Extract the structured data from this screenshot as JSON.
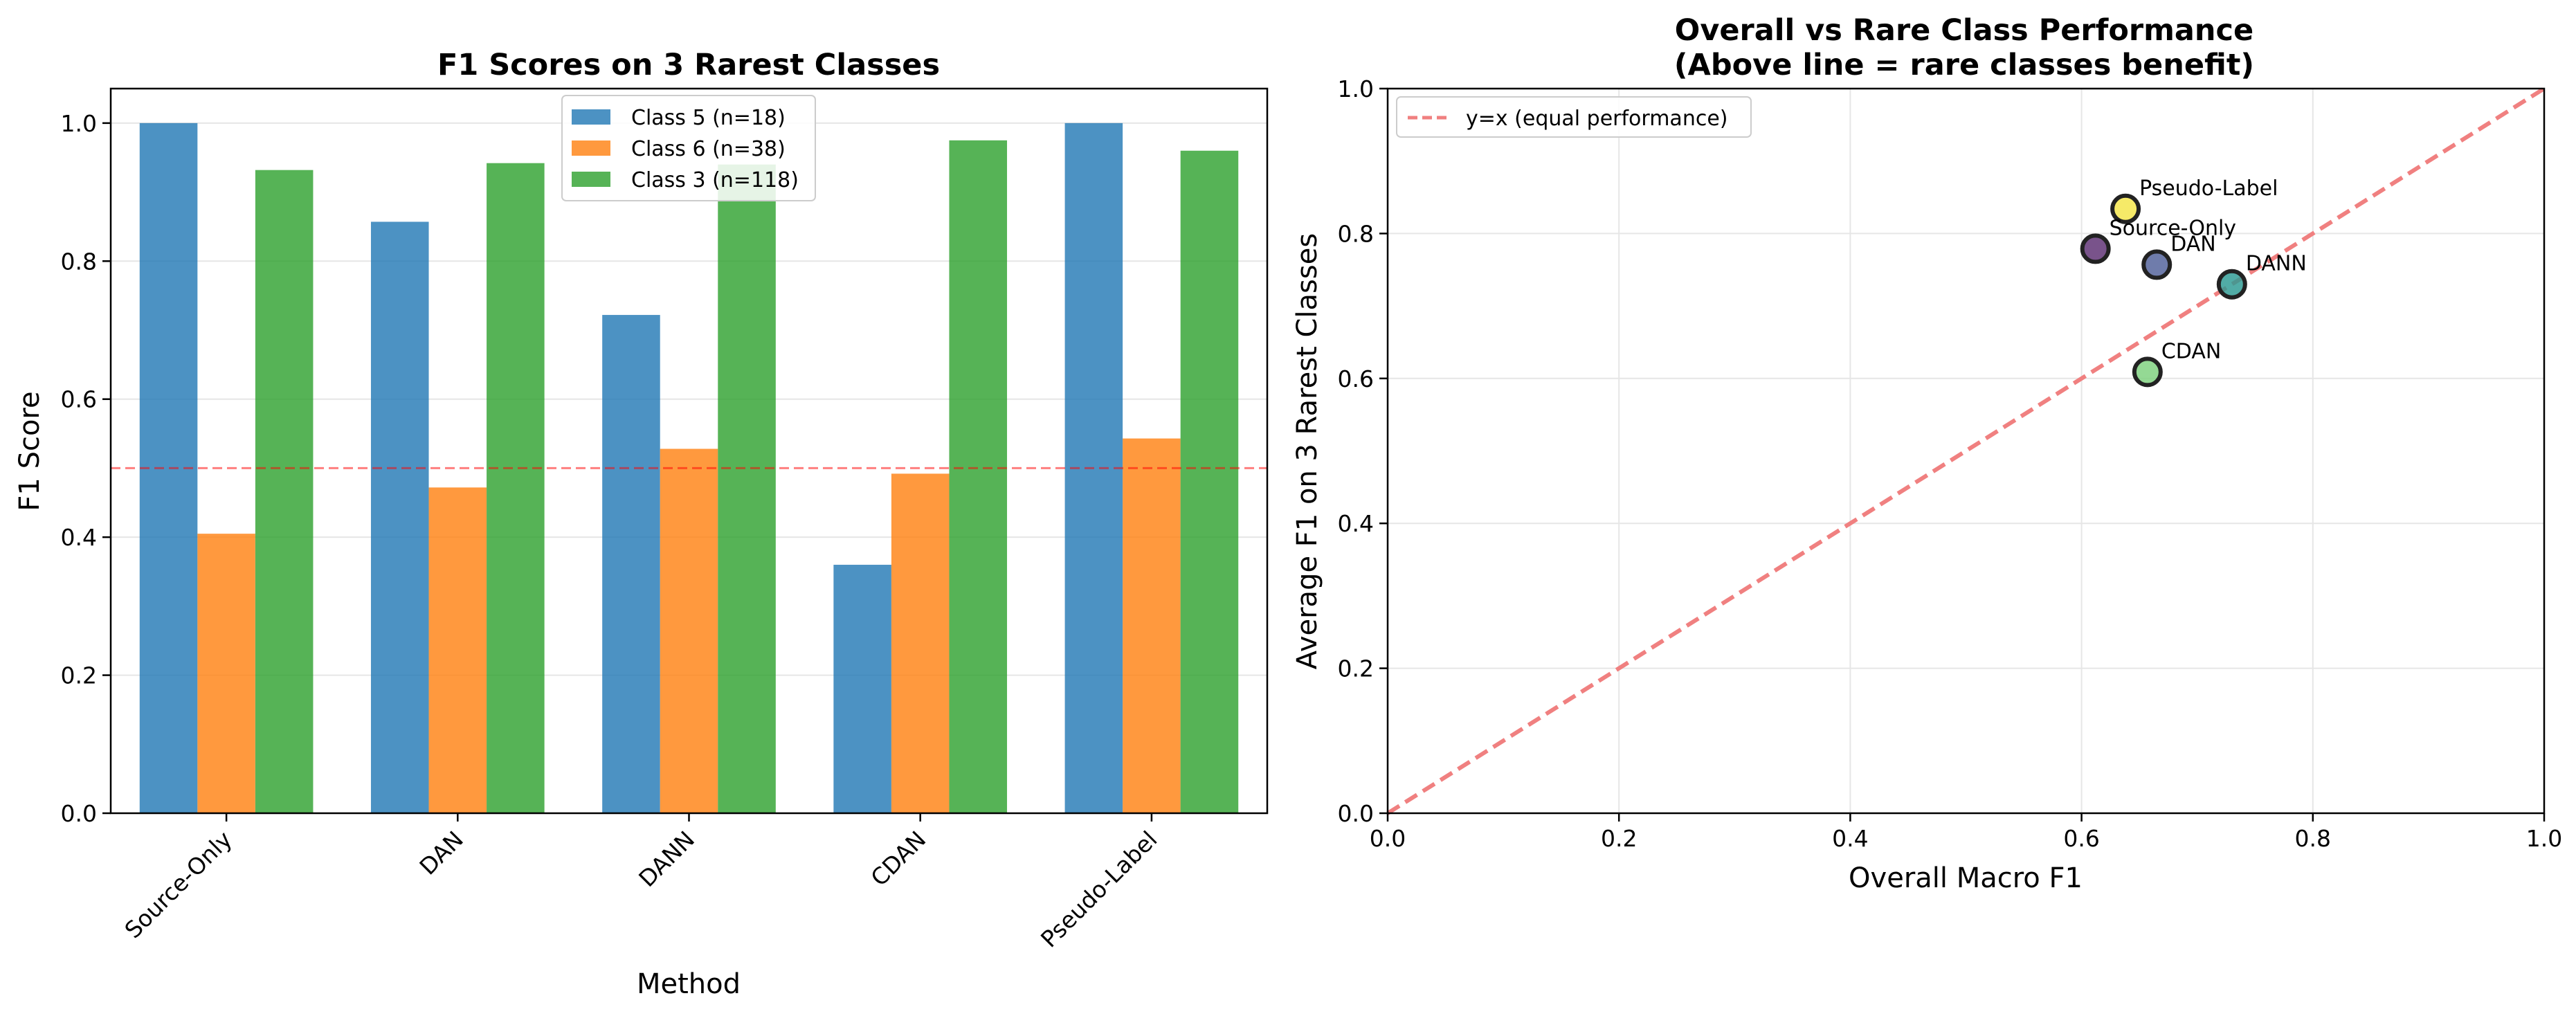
{
  "chart_data": [
    {
      "type": "bar",
      "title": "F1 Scores on 3 Rarest Classes",
      "xlabel": "Method",
      "ylabel": "F1 Score",
      "categories": [
        "Source-Only",
        "DAN",
        "DANN",
        "CDAN",
        "Pseudo-Label"
      ],
      "series": [
        {
          "name": "Class 5 (n=18)",
          "color": "#1f77b4",
          "values": [
            1.0,
            0.857,
            0.722,
            0.36,
            1.0
          ]
        },
        {
          "name": "Class 6 (n=38)",
          "color": "#ff7f0e",
          "values": [
            0.405,
            0.472,
            0.528,
            0.492,
            0.543
          ]
        },
        {
          "name": "Class 3 (n=118)",
          "color": "#2ca02c",
          "values": [
            0.932,
            0.942,
            0.94,
            0.975,
            0.96
          ]
        }
      ],
      "ylim": [
        0,
        1.05
      ],
      "yticks": [
        "0.0",
        "0.2",
        "0.4",
        "0.6",
        "0.8",
        "1.0"
      ],
      "reference_line": {
        "y": 0.5,
        "color": "#ff0000",
        "style": "dashed"
      },
      "grid": "y-only",
      "legend": "upper-center"
    },
    {
      "type": "scatter",
      "title": "Overall vs Rare Class Performance",
      "subtitle": "(Above line = rare classes benefit)",
      "xlabel": "Overall Macro F1",
      "ylabel": "Average F1 on 3 Rarest Classes",
      "xlim": [
        0,
        1
      ],
      "ylim": [
        0,
        1
      ],
      "xticks": [
        "0.0",
        "0.2",
        "0.4",
        "0.6",
        "0.8",
        "1.0"
      ],
      "yticks": [
        "0.0",
        "0.2",
        "0.4",
        "0.6",
        "0.8",
        "1.0"
      ],
      "points": [
        {
          "label": "Source-Only",
          "x": 0.612,
          "y": 0.779,
          "color": "#5c2d72"
        },
        {
          "label": "DAN",
          "x": 0.665,
          "y": 0.757,
          "color": "#4f5f98"
        },
        {
          "label": "DANN",
          "x": 0.73,
          "y": 0.73,
          "color": "#2b9a93"
        },
        {
          "label": "CDAN",
          "x": 0.657,
          "y": 0.609,
          "color": "#7dd17c"
        },
        {
          "label": "Pseudo-Label",
          "x": 0.638,
          "y": 0.834,
          "color": "#f4e547"
        }
      ],
      "reference_line": {
        "label": "y=x (equal performance)",
        "color": "#f08080",
        "style": "dashed"
      },
      "grid": "both",
      "legend": "upper-left"
    }
  ]
}
